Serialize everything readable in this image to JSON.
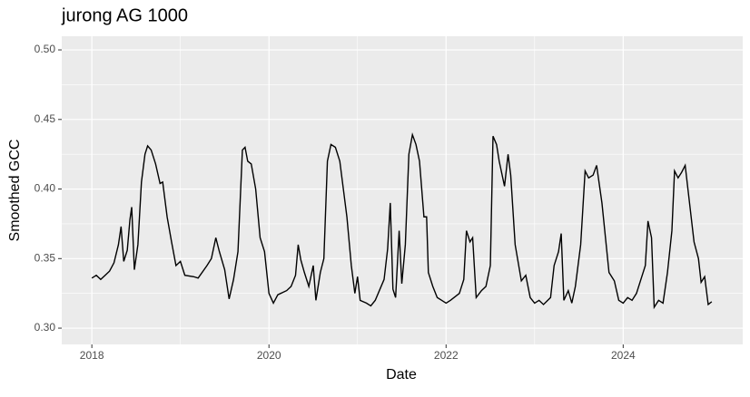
{
  "chart_data": {
    "type": "line",
    "title": "jurong AG 1000",
    "x_label": "Date",
    "y_label": "Smoothed GCC",
    "color": "#000000",
    "x": [
      2018.0,
      2018.05,
      2018.1,
      2018.15,
      2018.2,
      2018.25,
      2018.3,
      2018.33,
      2018.36,
      2018.4,
      2018.43,
      2018.45,
      2018.48,
      2018.52,
      2018.56,
      2018.6,
      2018.63,
      2018.67,
      2018.72,
      2018.77,
      2018.8,
      2018.85,
      2018.9,
      2018.95,
      2019.0,
      2019.05,
      2019.15,
      2019.2,
      2019.3,
      2019.35,
      2019.4,
      2019.44,
      2019.5,
      2019.55,
      2019.6,
      2019.65,
      2019.7,
      2019.73,
      2019.76,
      2019.8,
      2019.85,
      2019.9,
      2019.95,
      2020.0,
      2020.05,
      2020.1,
      2020.2,
      2020.25,
      2020.3,
      2020.33,
      2020.36,
      2020.4,
      2020.45,
      2020.5,
      2020.53,
      2020.58,
      2020.62,
      2020.66,
      2020.7,
      2020.75,
      2020.8,
      2020.84,
      2020.88,
      2020.93,
      2020.97,
      2021.0,
      2021.03,
      2021.1,
      2021.15,
      2021.2,
      2021.3,
      2021.34,
      2021.37,
      2021.4,
      2021.43,
      2021.47,
      2021.5,
      2021.54,
      2021.58,
      2021.62,
      2021.66,
      2021.7,
      2021.75,
      2021.78,
      2021.8,
      2021.85,
      2021.9,
      2021.95,
      2022.0,
      2022.05,
      2022.15,
      2022.2,
      2022.23,
      2022.27,
      2022.3,
      2022.34,
      2022.4,
      2022.45,
      2022.5,
      2022.53,
      2022.57,
      2022.6,
      2022.66,
      2022.7,
      2022.73,
      2022.78,
      2022.85,
      2022.9,
      2022.95,
      2023.0,
      2023.05,
      2023.1,
      2023.18,
      2023.22,
      2023.27,
      2023.3,
      2023.33,
      2023.38,
      2023.42,
      2023.46,
      2023.52,
      2023.57,
      2023.61,
      2023.66,
      2023.7,
      2023.76,
      2023.8,
      2023.84,
      2023.9,
      2023.95,
      2024.0,
      2024.05,
      2024.1,
      2024.15,
      2024.2,
      2024.25,
      2024.28,
      2024.32,
      2024.35,
      2024.4,
      2024.45,
      2024.5,
      2024.55,
      2024.58,
      2024.62,
      2024.66,
      2024.7,
      2024.74,
      2024.8,
      2024.85,
      2024.88,
      2024.92,
      2024.96,
      2025.0
    ],
    "values": [
      0.336,
      0.338,
      0.335,
      0.338,
      0.341,
      0.347,
      0.36,
      0.373,
      0.348,
      0.356,
      0.378,
      0.387,
      0.342,
      0.36,
      0.405,
      0.425,
      0.431,
      0.428,
      0.418,
      0.404,
      0.405,
      0.38,
      0.362,
      0.345,
      0.348,
      0.338,
      0.337,
      0.336,
      0.345,
      0.35,
      0.365,
      0.355,
      0.342,
      0.321,
      0.335,
      0.355,
      0.428,
      0.43,
      0.42,
      0.418,
      0.4,
      0.365,
      0.355,
      0.325,
      0.318,
      0.324,
      0.327,
      0.33,
      0.338,
      0.36,
      0.349,
      0.34,
      0.33,
      0.345,
      0.32,
      0.34,
      0.35,
      0.42,
      0.432,
      0.43,
      0.42,
      0.4,
      0.38,
      0.345,
      0.325,
      0.337,
      0.32,
      0.318,
      0.316,
      0.32,
      0.335,
      0.357,
      0.39,
      0.328,
      0.322,
      0.37,
      0.332,
      0.36,
      0.425,
      0.439,
      0.432,
      0.42,
      0.38,
      0.38,
      0.34,
      0.33,
      0.322,
      0.32,
      0.318,
      0.32,
      0.325,
      0.335,
      0.37,
      0.362,
      0.365,
      0.322,
      0.327,
      0.33,
      0.345,
      0.438,
      0.432,
      0.42,
      0.402,
      0.425,
      0.41,
      0.36,
      0.334,
      0.338,
      0.322,
      0.318,
      0.32,
      0.317,
      0.322,
      0.345,
      0.355,
      0.368,
      0.32,
      0.327,
      0.318,
      0.33,
      0.36,
      0.413,
      0.408,
      0.41,
      0.417,
      0.39,
      0.365,
      0.34,
      0.334,
      0.32,
      0.318,
      0.322,
      0.32,
      0.325,
      0.335,
      0.345,
      0.377,
      0.365,
      0.315,
      0.32,
      0.318,
      0.34,
      0.37,
      0.413,
      0.408,
      0.412,
      0.417,
      0.395,
      0.362,
      0.35,
      0.333,
      0.337,
      0.317,
      0.319
    ],
    "xlim": [
      2017.66,
      2025.35
    ],
    "xticks": [
      2018,
      2020,
      2022,
      2024
    ],
    "ylim": [
      0.2883,
      0.5098
    ],
    "yticks": [
      {
        "value": 0.3,
        "label": "0.30"
      },
      {
        "value": 0.35,
        "label": "0.35"
      },
      {
        "value": 0.4,
        "label": "0.40"
      },
      {
        "value": 0.45,
        "label": "0.45"
      },
      {
        "value": 0.5,
        "label": "0.50"
      }
    ],
    "grid": true
  }
}
